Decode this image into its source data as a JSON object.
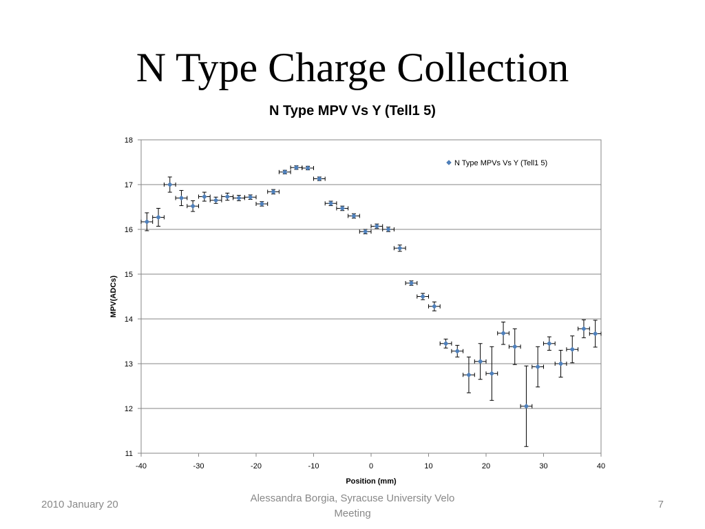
{
  "slide": {
    "title": "N Type Charge Collection",
    "footer_left": "2010 January 20",
    "footer_center": "Alessandra Borgia, Syracuse University Velo Meeting",
    "footer_right": "7"
  },
  "chart_data": {
    "type": "scatter",
    "title": "N Type MPV Vs Y (Tell1 5)",
    "xlabel": "Position (mm)",
    "ylabel": "MPV(ADCs)",
    "xlim": [
      -40,
      40
    ],
    "ylim": [
      11,
      18
    ],
    "xticks": [
      -40,
      -30,
      -20,
      -10,
      0,
      10,
      20,
      30,
      40
    ],
    "yticks": [
      11,
      12,
      13,
      14,
      15,
      16,
      17,
      18
    ],
    "grid": "horizontal",
    "legend": "top-right",
    "marker_color": "#4f81bd",
    "x_error": 1,
    "series": [
      {
        "name": "N Type MPVs Vs Y (Tell1 5)",
        "points": [
          {
            "x": -39,
            "y": 16.17,
            "yerr": 0.2
          },
          {
            "x": -37,
            "y": 16.27,
            "yerr": 0.2
          },
          {
            "x": -35,
            "y": 17.0,
            "yerr": 0.17
          },
          {
            "x": -33,
            "y": 16.7,
            "yerr": 0.17
          },
          {
            "x": -31,
            "y": 16.52,
            "yerr": 0.12
          },
          {
            "x": -29,
            "y": 16.73,
            "yerr": 0.1
          },
          {
            "x": -27,
            "y": 16.65,
            "yerr": 0.07
          },
          {
            "x": -25,
            "y": 16.73,
            "yerr": 0.08
          },
          {
            "x": -23,
            "y": 16.7,
            "yerr": 0.06
          },
          {
            "x": -21,
            "y": 16.72,
            "yerr": 0.05
          },
          {
            "x": -19,
            "y": 16.57,
            "yerr": 0.05
          },
          {
            "x": -17,
            "y": 16.84,
            "yerr": 0.05
          },
          {
            "x": -15,
            "y": 17.28,
            "yerr": 0.04
          },
          {
            "x": -13,
            "y": 17.38,
            "yerr": 0.04
          },
          {
            "x": -11,
            "y": 17.37,
            "yerr": 0.04
          },
          {
            "x": -9,
            "y": 17.13,
            "yerr": 0.04
          },
          {
            "x": -7,
            "y": 16.58,
            "yerr": 0.05
          },
          {
            "x": -5,
            "y": 16.47,
            "yerr": 0.05
          },
          {
            "x": -3,
            "y": 16.3,
            "yerr": 0.05
          },
          {
            "x": -1,
            "y": 15.95,
            "yerr": 0.05
          },
          {
            "x": 1,
            "y": 16.07,
            "yerr": 0.05
          },
          {
            "x": 3,
            "y": 16.0,
            "yerr": 0.05
          },
          {
            "x": 5,
            "y": 15.58,
            "yerr": 0.07
          },
          {
            "x": 7,
            "y": 14.8,
            "yerr": 0.05
          },
          {
            "x": 9,
            "y": 14.5,
            "yerr": 0.07
          },
          {
            "x": 11,
            "y": 14.28,
            "yerr": 0.1
          },
          {
            "x": 13,
            "y": 13.45,
            "yerr": 0.1
          },
          {
            "x": 15,
            "y": 13.28,
            "yerr": 0.13
          },
          {
            "x": 17,
            "y": 12.75,
            "yerr": 0.4
          },
          {
            "x": 19,
            "y": 13.05,
            "yerr": 0.4
          },
          {
            "x": 21,
            "y": 12.78,
            "yerr": 0.6
          },
          {
            "x": 23,
            "y": 13.68,
            "yerr": 0.25
          },
          {
            "x": 25,
            "y": 13.38,
            "yerr": 0.4
          },
          {
            "x": 27,
            "y": 12.05,
            "yerr": 0.9
          },
          {
            "x": 29,
            "y": 12.93,
            "yerr": 0.45
          },
          {
            "x": 31,
            "y": 13.45,
            "yerr": 0.15
          },
          {
            "x": 33,
            "y": 13.0,
            "yerr": 0.3
          },
          {
            "x": 35,
            "y": 13.32,
            "yerr": 0.3
          },
          {
            "x": 37,
            "y": 13.78,
            "yerr": 0.2
          },
          {
            "x": 39,
            "y": 13.67,
            "yerr": 0.3
          }
        ]
      }
    ]
  }
}
